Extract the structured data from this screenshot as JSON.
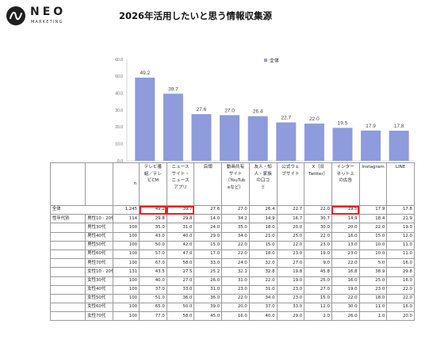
{
  "brand": {
    "name": "NEO",
    "tagline": "MARKETING"
  },
  "page_title": "2026年活用したいと思う情報収集源",
  "colors": {
    "bar": "#8e9bdc",
    "highlight": "#e8212b",
    "grid": "#d9d9d9"
  },
  "chart_data": {
    "type": "bar",
    "categories": [
      "テレビ番組／テレビCM",
      "ニュースサイト・ニュースアプリ",
      "店頭",
      "動画共有サイト（YouTubeなど）",
      "友人・知人・家族の口コミ",
      "公式ウェブサイト",
      "X（旧Twitter）",
      "インターネット上の広告",
      "Instagram",
      "LINE"
    ],
    "series": [
      {
        "name": "全体",
        "values": [
          49.2,
          39.7,
          27.6,
          27.0,
          26.4,
          22.7,
          22.0,
          19.5,
          17.9,
          17.8
        ]
      }
    ],
    "ylim": [
      0,
      60
    ],
    "yticks": [
      "60.0",
      "50.0",
      "40.0",
      "30.0",
      "20.0",
      "10.0",
      "0.0"
    ],
    "legend": "top-right",
    "grid": false
  },
  "table": {
    "n_label": "n",
    "headers": [
      "テレビ番組／テレビCM",
      "ニュースサイト・ニュースアプリ",
      "店頭",
      "動画共有サイト（YouTubeなど）",
      "友人・知人・家族の口コミ",
      "公式ウェブサイト",
      "X（旧Twitter）",
      "インターネット上の広告",
      "Instagram",
      "LINE"
    ],
    "header_lines": [
      [
        "テレビ番",
        "組／テレ",
        "ビCM"
      ],
      [
        "ニュース",
        "サイト・",
        "ニュース",
        "アプリ"
      ],
      [
        "店頭"
      ],
      [
        "動画共有",
        "サイト",
        "（YouTub",
        "eなど）"
      ],
      [
        "友人・知",
        "人・家族",
        "の口コ",
        "ミ"
      ],
      [
        "公式ウェ",
        "ブサイト"
      ],
      [
        "X（旧",
        "Twitter）"
      ],
      [
        "インター",
        "ネット上",
        "の広告"
      ],
      [
        "Instagram"
      ],
      [
        "LINE"
      ]
    ],
    "group_label": "性年代別",
    "rows": [
      {
        "label": "全体",
        "n": "1,245",
        "values": [
          "49.2",
          "39.7",
          "27.6",
          "27.0",
          "26.4",
          "22.7",
          "22.0",
          "19.5",
          "17.9",
          "17.8"
        ]
      },
      {
        "label": "男性10 - 20代",
        "n": "114",
        "values": [
          "29.8",
          "29.8",
          "14.0",
          "34.2",
          "14.9",
          "16.7",
          "30.7",
          "14.9",
          "18.4",
          "21.9"
        ]
      },
      {
        "label": "男性30代",
        "n": "100",
        "values": [
          "35.0",
          "31.0",
          "24.0",
          "35.0",
          "18.0",
          "20.0",
          "30.0",
          "20.0",
          "22.0",
          "19.0"
        ]
      },
      {
        "label": "男性40代",
        "n": "100",
        "values": [
          "43.0",
          "40.0",
          "29.0",
          "34.0",
          "21.0",
          "25.0",
          "22.0",
          "16.0",
          "15.0",
          "12.0"
        ]
      },
      {
        "label": "男性50代",
        "n": "100",
        "values": [
          "50.0",
          "42.0",
          "15.0",
          "22.0",
          "15.0",
          "22.0",
          "23.0",
          "13.0",
          "10.0",
          "11.0"
        ]
      },
      {
        "label": "男性60代",
        "n": "100",
        "values": [
          "57.0",
          "47.0",
          "17.0",
          "22.0",
          "18.0",
          "23.0",
          "19.0",
          "23.0",
          "10.0",
          "11.0"
        ]
      },
      {
        "label": "男性70代",
        "n": "100",
        "values": [
          "67.0",
          "58.0",
          "33.0",
          "24.0",
          "32.0",
          "27.0",
          "9.0",
          "22.0",
          "5.0",
          "16.0"
        ]
      },
      {
        "label": "女性10 - 20代",
        "n": "131",
        "values": [
          "43.5",
          "27.5",
          "25.2",
          "32.1",
          "32.8",
          "19.8",
          "45.8",
          "16.8",
          "38.9",
          "29.8"
        ]
      },
      {
        "label": "女性30代",
        "n": "100",
        "values": [
          "40.0",
          "27.0",
          "26.0",
          "31.0",
          "22.0",
          "19.0",
          "25.0",
          "16.0",
          "25.0",
          "16.0"
        ]
      },
      {
        "label": "女性40代",
        "n": "100",
        "values": [
          "37.0",
          "33.0",
          "31.0",
          "23.0",
          "31.0",
          "23.0",
          "27.0",
          "19.0",
          "23.0",
          "22.0"
        ]
      },
      {
        "label": "女性50代",
        "n": "100",
        "values": [
          "51.0",
          "36.0",
          "36.0",
          "22.0",
          "34.0",
          "23.0",
          "15.0",
          "22.0",
          "18.0",
          "22.0"
        ]
      },
      {
        "label": "女性60代",
        "n": "100",
        "values": [
          "65.0",
          "50.0",
          "39.0",
          "20.0",
          "37.0",
          "33.0",
          "12.0",
          "30.0",
          "11.0",
          "16.0"
        ]
      },
      {
        "label": "女性70代",
        "n": "100",
        "values": [
          "77.0",
          "58.0",
          "45.0",
          "16.0",
          "40.0",
          "29.0",
          "2.0",
          "26.0",
          "1.0",
          "20.0"
        ]
      }
    ]
  }
}
